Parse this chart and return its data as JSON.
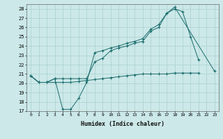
{
  "xlabel": "Humidex (Indice chaleur)",
  "bg_color": "#cce8e8",
  "line_color": "#1a6b6b",
  "grid_color": "#aad0d0",
  "xlim": [
    -0.5,
    23.5
  ],
  "ylim": [
    17,
    28.5
  ],
  "yticks": [
    17,
    18,
    19,
    20,
    21,
    22,
    23,
    24,
    25,
    26,
    27,
    28
  ],
  "xticks": [
    0,
    1,
    2,
    3,
    4,
    5,
    6,
    7,
    8,
    9,
    10,
    11,
    12,
    13,
    14,
    15,
    16,
    17,
    18,
    19,
    20,
    21,
    22,
    23
  ],
  "line1_x": [
    0,
    1,
    2,
    3,
    4,
    5,
    6,
    7,
    8,
    9,
    10,
    11,
    12,
    13,
    14,
    15,
    16,
    17,
    18,
    19,
    20,
    21
  ],
  "line1_y": [
    20.8,
    20.1,
    20.1,
    20.5,
    17.2,
    17.2,
    18.4,
    20.1,
    23.3,
    23.5,
    23.8,
    24.0,
    24.3,
    24.5,
    24.8,
    25.8,
    26.3,
    27.5,
    28.0,
    27.7,
    25.0,
    22.5
  ],
  "line2_x": [
    0,
    1,
    2,
    3,
    4,
    5,
    6,
    7,
    8,
    9,
    10,
    11,
    12,
    13,
    14,
    15,
    16,
    17,
    18,
    23
  ],
  "line2_y": [
    20.8,
    20.1,
    20.1,
    20.5,
    20.5,
    20.5,
    20.5,
    20.5,
    22.3,
    22.7,
    23.5,
    23.8,
    24.0,
    24.3,
    24.5,
    25.6,
    26.0,
    27.5,
    28.2,
    21.3
  ],
  "line3_x": [
    0,
    1,
    2,
    3,
    4,
    5,
    6,
    7,
    8,
    9,
    10,
    11,
    12,
    13,
    14,
    15,
    16,
    17,
    18,
    19,
    20,
    21
  ],
  "line3_y": [
    20.8,
    20.1,
    20.1,
    20.1,
    20.1,
    20.1,
    20.2,
    20.3,
    20.4,
    20.5,
    20.6,
    20.7,
    20.8,
    20.9,
    21.0,
    21.0,
    21.0,
    21.0,
    21.1,
    21.1,
    21.1,
    21.1
  ]
}
